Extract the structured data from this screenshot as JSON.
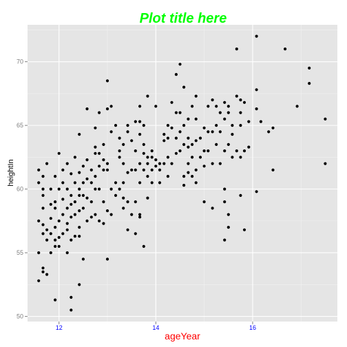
{
  "chart_data": {
    "type": "scatter",
    "title": "Plot title here",
    "xlabel": "ageYear",
    "ylabel": "heightIn",
    "xlim": [
      11.35,
      17.75
    ],
    "ylim": [
      49.6,
      72.9
    ],
    "x_ticks": [
      12,
      14,
      16
    ],
    "x_tick_labels": [
      "12",
      "14",
      "16"
    ],
    "y_ticks": [
      50,
      55,
      60,
      65,
      70
    ],
    "y_tick_labels": [
      "50",
      "55",
      "60",
      "65",
      "70"
    ],
    "grid": true,
    "legend": "none",
    "colors": {
      "panel_bg": "#e5e5e5",
      "grid_major": "#ffffff",
      "grid_minor": "#f2f2f2",
      "point": "#000000",
      "title": "#00ff00",
      "xlabel": "#ff0000",
      "xtick": "#0000ff",
      "ytick": "#7f7f7f"
    },
    "points": [
      [
        11.58,
        52.8
      ],
      [
        11.58,
        55.0
      ],
      [
        11.58,
        57.5
      ],
      [
        11.58,
        60.5
      ],
      [
        11.58,
        61.5
      ],
      [
        11.67,
        53.5
      ],
      [
        11.67,
        53.8
      ],
      [
        11.67,
        56.5
      ],
      [
        11.67,
        57.2
      ],
      [
        11.67,
        58.5
      ],
      [
        11.67,
        59.5
      ],
      [
        11.67,
        60.0
      ],
      [
        11.67,
        61.0
      ],
      [
        11.75,
        53.3
      ],
      [
        11.75,
        56.0
      ],
      [
        11.75,
        56.8
      ],
      [
        11.75,
        62.0
      ],
      [
        11.83,
        55.0
      ],
      [
        11.83,
        56.5
      ],
      [
        11.83,
        57.7
      ],
      [
        11.83,
        58.8
      ],
      [
        11.83,
        60.0
      ],
      [
        11.92,
        55.5
      ],
      [
        11.92,
        56.0
      ],
      [
        11.92,
        57.0
      ],
      [
        11.92,
        58.5
      ],
      [
        11.92,
        59.0
      ],
      [
        11.92,
        61.0
      ],
      [
        11.92,
        51.3
      ],
      [
        12.0,
        56.2
      ],
      [
        12.0,
        57.5
      ],
      [
        12.0,
        60.0
      ],
      [
        12.0,
        62.8
      ],
      [
        12.0,
        55.5
      ],
      [
        12.08,
        56.5
      ],
      [
        12.08,
        58.0
      ],
      [
        12.08,
        59.2
      ],
      [
        12.08,
        60.5
      ],
      [
        12.08,
        61.5
      ],
      [
        12.17,
        55.0
      ],
      [
        12.17,
        57.3
      ],
      [
        12.17,
        58.5
      ],
      [
        12.17,
        60.0
      ],
      [
        12.17,
        62.0
      ],
      [
        12.17,
        56.8
      ],
      [
        12.25,
        51.5
      ],
      [
        12.25,
        50.5
      ],
      [
        12.25,
        56.0
      ],
      [
        12.25,
        58.8
      ],
      [
        12.25,
        59.5
      ],
      [
        12.25,
        61.2
      ],
      [
        12.25,
        57.8
      ],
      [
        12.33,
        56.3
      ],
      [
        12.33,
        58.0
      ],
      [
        12.33,
        60.5
      ],
      [
        12.33,
        62.5
      ],
      [
        12.33,
        59.0
      ],
      [
        12.42,
        52.5
      ],
      [
        12.42,
        56.3
      ],
      [
        12.42,
        57.0
      ],
      [
        12.42,
        58.3
      ],
      [
        12.42,
        60.0
      ],
      [
        12.42,
        61.3
      ],
      [
        12.42,
        64.3
      ],
      [
        12.42,
        59.5
      ],
      [
        12.5,
        54.5
      ],
      [
        12.5,
        58.5
      ],
      [
        12.5,
        59.5
      ],
      [
        12.5,
        60.5
      ],
      [
        12.5,
        61.8
      ],
      [
        12.58,
        57.5
      ],
      [
        12.58,
        59.3
      ],
      [
        12.58,
        60.8
      ],
      [
        12.58,
        62.3
      ],
      [
        12.58,
        66.3
      ],
      [
        12.67,
        57.8
      ],
      [
        12.67,
        59.0
      ],
      [
        12.67,
        60.5
      ],
      [
        12.67,
        61.5
      ],
      [
        12.75,
        58.0
      ],
      [
        12.75,
        60.0
      ],
      [
        12.75,
        61.0
      ],
      [
        12.75,
        62.8
      ],
      [
        12.75,
        63.3
      ],
      [
        12.75,
        64.8
      ],
      [
        12.83,
        57.5
      ],
      [
        12.83,
        60.0
      ],
      [
        12.83,
        61.8
      ],
      [
        12.83,
        62.8
      ],
      [
        12.83,
        66.0
      ],
      [
        12.92,
        57.3
      ],
      [
        12.92,
        59.0
      ],
      [
        12.92,
        61.5
      ],
      [
        12.92,
        62.3
      ],
      [
        12.92,
        63.5
      ],
      [
        13.0,
        54.5
      ],
      [
        13.0,
        58.3
      ],
      [
        13.0,
        61.5
      ],
      [
        13.0,
        62.0
      ],
      [
        13.0,
        66.3
      ],
      [
        13.0,
        68.5
      ],
      [
        13.08,
        58.0
      ],
      [
        13.08,
        60.0
      ],
      [
        13.08,
        64.5
      ],
      [
        13.08,
        66.5
      ],
      [
        13.17,
        59.5
      ],
      [
        13.17,
        60.5
      ],
      [
        13.17,
        65.0
      ],
      [
        13.25,
        60.0
      ],
      [
        13.25,
        62.5
      ],
      [
        13.25,
        63.0
      ],
      [
        13.25,
        64.0
      ],
      [
        13.33,
        58.5
      ],
      [
        13.33,
        59.3
      ],
      [
        13.33,
        60.5
      ],
      [
        13.33,
        62.0
      ],
      [
        13.33,
        63.5
      ],
      [
        13.42,
        56.8
      ],
      [
        13.42,
        59.0
      ],
      [
        13.42,
        61.3
      ],
      [
        13.42,
        64.5
      ],
      [
        13.42,
        65.0
      ],
      [
        13.5,
        58.0
      ],
      [
        13.5,
        61.5
      ],
      [
        13.5,
        63.8
      ],
      [
        13.58,
        56.5
      ],
      [
        13.58,
        59.0
      ],
      [
        13.58,
        61.5
      ],
      [
        13.58,
        63.0
      ],
      [
        13.58,
        65.3
      ],
      [
        13.67,
        57.8
      ],
      [
        13.67,
        58.0
      ],
      [
        13.67,
        60.5
      ],
      [
        13.67,
        62.0
      ],
      [
        13.67,
        64.3
      ],
      [
        13.67,
        65.3
      ],
      [
        13.67,
        66.5
      ],
      [
        13.75,
        55.5
      ],
      [
        13.75,
        61.5
      ],
      [
        13.75,
        62.8
      ],
      [
        13.75,
        63.5
      ],
      [
        13.75,
        65.0
      ],
      [
        13.83,
        59.3
      ],
      [
        13.83,
        61.0
      ],
      [
        13.83,
        62.0
      ],
      [
        13.83,
        62.5
      ],
      [
        13.83,
        67.3
      ],
      [
        13.92,
        60.5
      ],
      [
        13.92,
        61.5
      ],
      [
        13.92,
        62.5
      ],
      [
        13.92,
        63.0
      ],
      [
        14.0,
        61.8
      ],
      [
        14.0,
        62.3
      ],
      [
        14.0,
        66.5
      ],
      [
        14.08,
        60.5
      ],
      [
        14.08,
        61.5
      ],
      [
        14.08,
        62.0
      ],
      [
        14.17,
        62.0
      ],
      [
        14.17,
        63.8
      ],
      [
        14.17,
        64.3
      ],
      [
        14.25,
        61.0
      ],
      [
        14.25,
        62.5
      ],
      [
        14.25,
        64.0
      ],
      [
        14.25,
        65.0
      ],
      [
        14.33,
        62.0
      ],
      [
        14.33,
        64.8
      ],
      [
        14.33,
        66.8
      ],
      [
        14.42,
        62.8
      ],
      [
        14.42,
        64.0
      ],
      [
        14.42,
        66.0
      ],
      [
        14.42,
        69.0
      ],
      [
        14.5,
        63.0
      ],
      [
        14.5,
        64.5
      ],
      [
        14.5,
        66.0
      ],
      [
        14.5,
        69.8
      ],
      [
        14.58,
        60.3
      ],
      [
        14.58,
        61.0
      ],
      [
        14.58,
        63.5
      ],
      [
        14.58,
        65.0
      ],
      [
        14.58,
        68.0
      ],
      [
        14.67,
        61.3
      ],
      [
        14.67,
        62.0
      ],
      [
        14.67,
        63.3
      ],
      [
        14.67,
        64.0
      ],
      [
        14.67,
        65.5
      ],
      [
        14.75,
        61.0
      ],
      [
        14.75,
        62.5
      ],
      [
        14.75,
        63.5
      ],
      [
        14.75,
        66.5
      ],
      [
        14.83,
        60.5
      ],
      [
        14.83,
        61.5
      ],
      [
        14.83,
        63.8
      ],
      [
        14.83,
        65.5
      ],
      [
        14.83,
        67.3
      ],
      [
        14.92,
        62.5
      ],
      [
        14.92,
        64.0
      ],
      [
        15.0,
        59.0
      ],
      [
        15.0,
        61.8
      ],
      [
        15.0,
        63.0
      ],
      [
        15.0,
        64.8
      ],
      [
        15.08,
        63.0
      ],
      [
        15.08,
        64.5
      ],
      [
        15.08,
        66.5
      ],
      [
        15.17,
        58.5
      ],
      [
        15.17,
        62.0
      ],
      [
        15.17,
        64.5
      ],
      [
        15.17,
        67.0
      ],
      [
        15.25,
        63.5
      ],
      [
        15.25,
        65.0
      ],
      [
        15.25,
        66.5
      ],
      [
        15.33,
        62.0
      ],
      [
        15.33,
        64.5
      ],
      [
        15.33,
        66.0
      ],
      [
        15.42,
        56.0
      ],
      [
        15.42,
        59.0
      ],
      [
        15.42,
        60.0
      ],
      [
        15.42,
        63.0
      ],
      [
        15.42,
        65.5
      ],
      [
        15.42,
        66.8
      ],
      [
        15.5,
        57.0
      ],
      [
        15.5,
        58.0
      ],
      [
        15.5,
        63.5
      ],
      [
        15.5,
        66.0
      ],
      [
        15.5,
        66.5
      ],
      [
        15.58,
        62.5
      ],
      [
        15.58,
        64.3
      ],
      [
        15.58,
        65.0
      ],
      [
        15.67,
        63.0
      ],
      [
        15.67,
        67.3
      ],
      [
        15.67,
        71.0
      ],
      [
        15.75,
        59.5
      ],
      [
        15.75,
        62.5
      ],
      [
        15.75,
        65.0
      ],
      [
        15.75,
        66.0
      ],
      [
        15.75,
        67.0
      ],
      [
        15.83,
        56.8
      ],
      [
        15.83,
        63.0
      ],
      [
        15.83,
        66.8
      ],
      [
        15.92,
        63.3
      ],
      [
        15.92,
        65.3
      ],
      [
        16.08,
        59.8
      ],
      [
        16.08,
        66.3
      ],
      [
        16.08,
        67.8
      ],
      [
        16.08,
        72.0
      ],
      [
        16.17,
        65.3
      ],
      [
        16.33,
        64.5
      ],
      [
        16.42,
        61.5
      ],
      [
        16.42,
        64.8
      ],
      [
        16.67,
        71.0
      ],
      [
        16.92,
        66.5
      ],
      [
        17.17,
        68.3
      ],
      [
        17.17,
        69.5
      ],
      [
        17.5,
        62.0
      ],
      [
        17.5,
        65.5
      ]
    ]
  }
}
